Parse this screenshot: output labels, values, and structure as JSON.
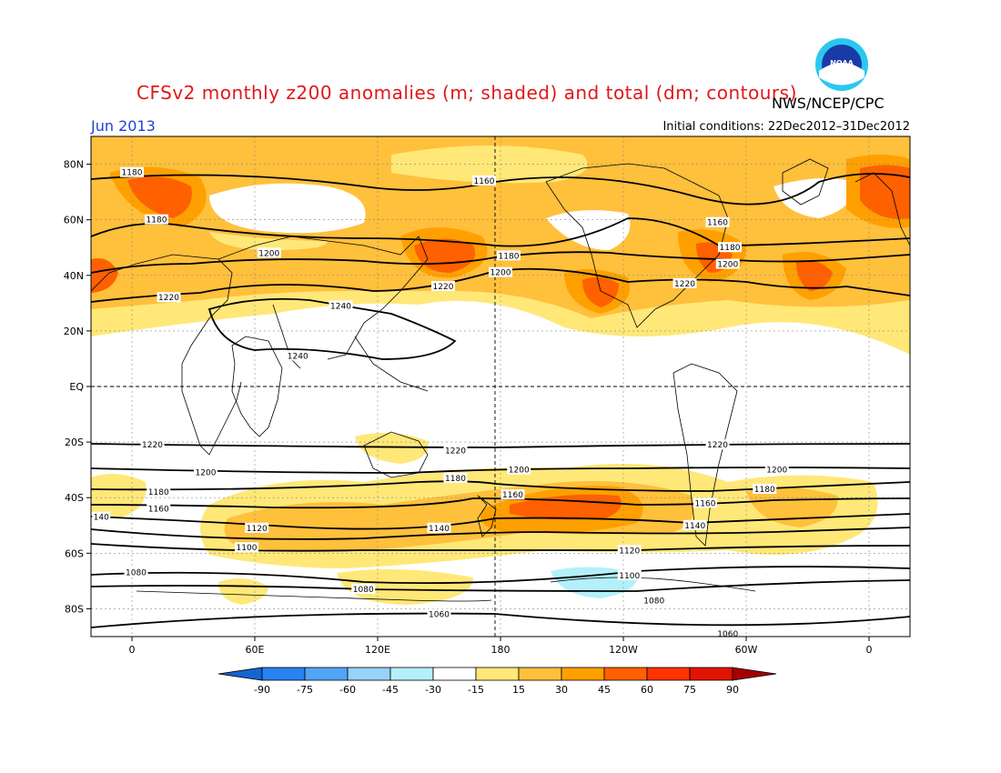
{
  "header": {
    "title": "CFSv2 monthly z200 anomalies (m; shaded) and total (dm; contours)",
    "agency": "NWS/NCEP/CPC",
    "month": "Jun 2013",
    "initial_conditions": "Initial conditions: 22Dec2012–31Dec2012"
  },
  "logo": {
    "text": "NOAA",
    "icon": "noaa-logo-icon"
  },
  "axes": {
    "lat_labels": [
      {
        "lat": 80,
        "text": "80N"
      },
      {
        "lat": 60,
        "text": "60N"
      },
      {
        "lat": 40,
        "text": "40N"
      },
      {
        "lat": 20,
        "text": "20N"
      },
      {
        "lat": 0,
        "text": "EQ"
      },
      {
        "lat": -20,
        "text": "20S"
      },
      {
        "lat": -40,
        "text": "40S"
      },
      {
        "lat": -60,
        "text": "60S"
      },
      {
        "lat": -80,
        "text": "80S"
      }
    ],
    "lon_labels": [
      {
        "lon": 0,
        "text": "0"
      },
      {
        "lon": 60,
        "text": "60E"
      },
      {
        "lon": 120,
        "text": "120E"
      },
      {
        "lon": 180,
        "text": "180"
      },
      {
        "lon": 240,
        "text": "120W"
      },
      {
        "lon": 300,
        "text": "60W"
      },
      {
        "lon": 360,
        "text": "0"
      }
    ],
    "lon_range": [
      -20,
      380
    ],
    "lat_range": [
      -90,
      90
    ]
  },
  "colorbar": {
    "labels": [
      "-90",
      "-75",
      "-60",
      "-45",
      "-30",
      "-15",
      "15",
      "30",
      "45",
      "60",
      "75",
      "90"
    ],
    "colors": [
      "#1464d2",
      "#2882f0",
      "#50a5f5",
      "#96d2fa",
      "#b4f0fa",
      "#ffffff",
      "#ffe878",
      "#ffc03c",
      "#ffa000",
      "#ff6000",
      "#ff3200",
      "#e11400",
      "#a50000"
    ]
  },
  "contour_labels": [
    {
      "lon": 0,
      "lat": 77,
      "text": "1180"
    },
    {
      "lon": 12,
      "lat": 60,
      "text": "1180"
    },
    {
      "lon": 67,
      "lat": 48,
      "text": "1200"
    },
    {
      "lon": 18,
      "lat": 32,
      "text": "1220"
    },
    {
      "lon": 102,
      "lat": 29,
      "text": "1240"
    },
    {
      "lon": 81,
      "lat": 11,
      "text": "1240"
    },
    {
      "lon": 172,
      "lat": 74,
      "text": "1160"
    },
    {
      "lon": 184,
      "lat": 47,
      "text": "1180"
    },
    {
      "lon": 180,
      "lat": 41,
      "text": "1200"
    },
    {
      "lon": 152,
      "lat": 36,
      "text": "1220"
    },
    {
      "lon": 286,
      "lat": 59,
      "text": "1160"
    },
    {
      "lon": 292,
      "lat": 50,
      "text": "1180"
    },
    {
      "lon": 291,
      "lat": 44,
      "text": "1200"
    },
    {
      "lon": 270,
      "lat": 37,
      "text": "1220"
    },
    {
      "lon": 10,
      "lat": -21,
      "text": "1220"
    },
    {
      "lon": 158,
      "lat": -23,
      "text": "1220"
    },
    {
      "lon": 286,
      "lat": -21,
      "text": "1220"
    },
    {
      "lon": 36,
      "lat": -31,
      "text": "1200"
    },
    {
      "lon": 189,
      "lat": -30,
      "text": "1200"
    },
    {
      "lon": 315,
      "lat": -30,
      "text": "1200"
    },
    {
      "lon": 13,
      "lat": -38,
      "text": "1180"
    },
    {
      "lon": 158,
      "lat": -33,
      "text": "1180"
    },
    {
      "lon": 309,
      "lat": -37,
      "text": "1180"
    },
    {
      "lon": 13,
      "lat": -44,
      "text": "1160"
    },
    {
      "lon": 186,
      "lat": -39,
      "text": "1160"
    },
    {
      "lon": 280,
      "lat": -42,
      "text": "1160"
    },
    {
      "lon": -15,
      "lat": -47,
      "text": "140"
    },
    {
      "lon": 61,
      "lat": -51,
      "text": "1120"
    },
    {
      "lon": 150,
      "lat": -51,
      "text": "1140"
    },
    {
      "lon": 275,
      "lat": -50,
      "text": "1140"
    },
    {
      "lon": 56,
      "lat": -58,
      "text": "1100"
    },
    {
      "lon": 243,
      "lat": -59,
      "text": "1120"
    },
    {
      "lon": 2,
      "lat": -67,
      "text": "1080"
    },
    {
      "lon": 113,
      "lat": -73,
      "text": "1080"
    },
    {
      "lon": 243,
      "lat": -68,
      "text": "1100"
    },
    {
      "lon": 255,
      "lat": -77,
      "text": "1080"
    },
    {
      "lon": 150,
      "lat": -82,
      "text": "1060"
    },
    {
      "lon": 291,
      "lat": -89,
      "text": "1060"
    }
  ]
}
